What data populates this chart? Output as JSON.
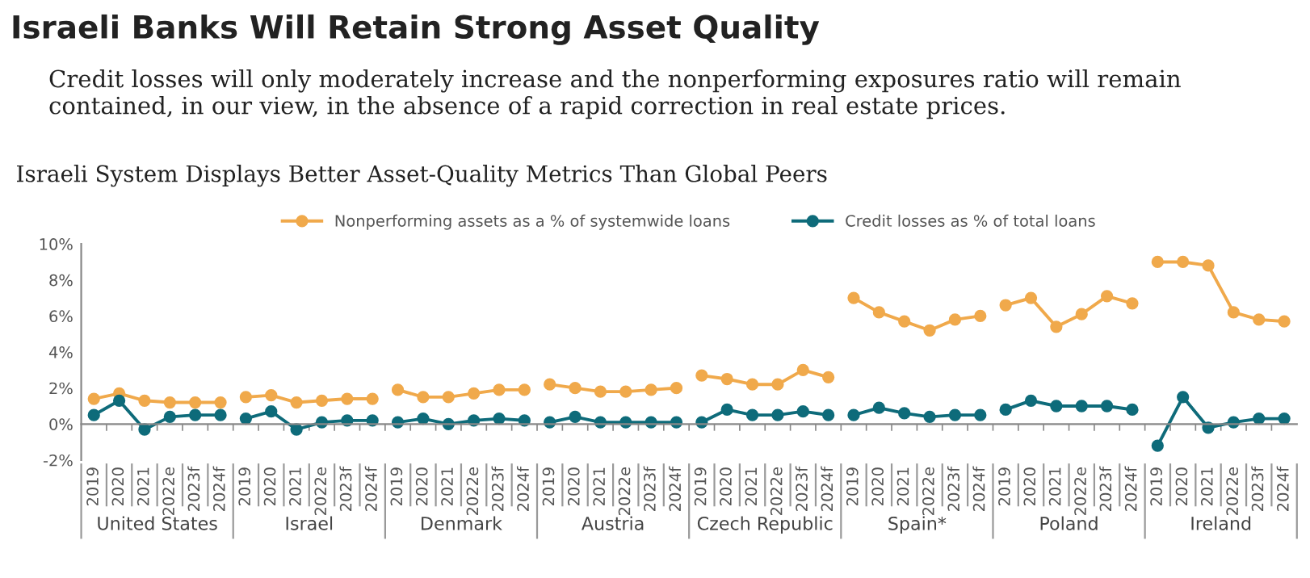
{
  "chart_data": {
    "type": "line",
    "title": "Israeli Banks Will Retain Strong Asset Quality",
    "subtitle": "Credit losses will only moderately increase and the nonperforming exposures ratio will remain contained, in our view, in the absence of a rapid correction in real estate prices.",
    "annotations": [
      "Israeli System Displays Better Asset-Quality Metrics Than Global Peers",
      "United States",
      "Israel",
      "Denmark",
      "Austria",
      "Czech Republic",
      "Spain*",
      "Poland",
      "Ireland"
    ],
    "categories": [
      "2019",
      "2020",
      "2021",
      "2022e",
      "2023f",
      "2024f",
      "2019",
      "2020",
      "2021",
      "2022e",
      "2023f",
      "2024f",
      "2019",
      "2020",
      "2021",
      "2022e",
      "2023f",
      "2024f",
      "2019",
      "2020",
      "2021",
      "2022e",
      "2023f",
      "2024f",
      "2019",
      "2020",
      "2021",
      "2022e",
      "2023f",
      "2024f",
      "2019",
      "2020",
      "2021",
      "2022e",
      "2023f",
      "2024f",
      "2019",
      "2020",
      "2021",
      "2022e",
      "2023f",
      "2024f",
      "2019",
      "2020",
      "2021",
      "2022e",
      "2023f",
      "2024f"
    ],
    "series": [
      {
        "name": "Nonperforming assets as a % of systemwide loans",
        "color": "#f0a94b",
        "values": [
          1.4,
          1.7,
          1.3,
          1.2,
          1.2,
          1.2,
          1.5,
          1.6,
          1.2,
          1.3,
          1.4,
          1.4,
          1.9,
          1.5,
          1.5,
          1.7,
          1.9,
          1.9,
          2.2,
          2.0,
          1.8,
          1.8,
          1.9,
          2.0,
          2.7,
          2.5,
          2.2,
          2.2,
          3.0,
          2.6,
          7.0,
          6.2,
          5.7,
          5.2,
          5.8,
          6.0,
          6.6,
          7.0,
          5.4,
          6.1,
          7.1,
          6.7,
          9.0,
          9.0,
          8.8,
          6.2,
          5.8,
          5.7
        ]
      },
      {
        "name": "Credit losses as % of total loans",
        "color": "#0e6b7a",
        "values": [
          0.5,
          1.3,
          -0.3,
          0.4,
          0.5,
          0.5,
          0.3,
          0.7,
          -0.3,
          0.1,
          0.2,
          0.2,
          0.1,
          0.3,
          0.0,
          0.2,
          0.3,
          0.2,
          0.1,
          0.4,
          0.1,
          0.1,
          0.1,
          0.1,
          0.1,
          0.8,
          0.5,
          0.5,
          0.7,
          0.5,
          0.5,
          0.9,
          0.6,
          0.4,
          0.5,
          0.5,
          0.8,
          1.3,
          1.0,
          1.0,
          1.0,
          0.8,
          -1.2,
          1.5,
          -0.2,
          0.1,
          0.3,
          0.3
        ]
      }
    ],
    "ylim": [
      -2,
      10
    ],
    "yticks": [
      {
        "value": -2,
        "label": "-2%"
      },
      {
        "value": 0,
        "label": "0%"
      },
      {
        "value": 2,
        "label": "2%"
      },
      {
        "value": 4,
        "label": "4%"
      },
      {
        "value": 6,
        "label": "6%"
      },
      {
        "value": 8,
        "label": "8%"
      },
      {
        "value": 10,
        "label": "10%"
      }
    ],
    "marker": "circle",
    "line_style": "solid",
    "legend": "top"
  }
}
